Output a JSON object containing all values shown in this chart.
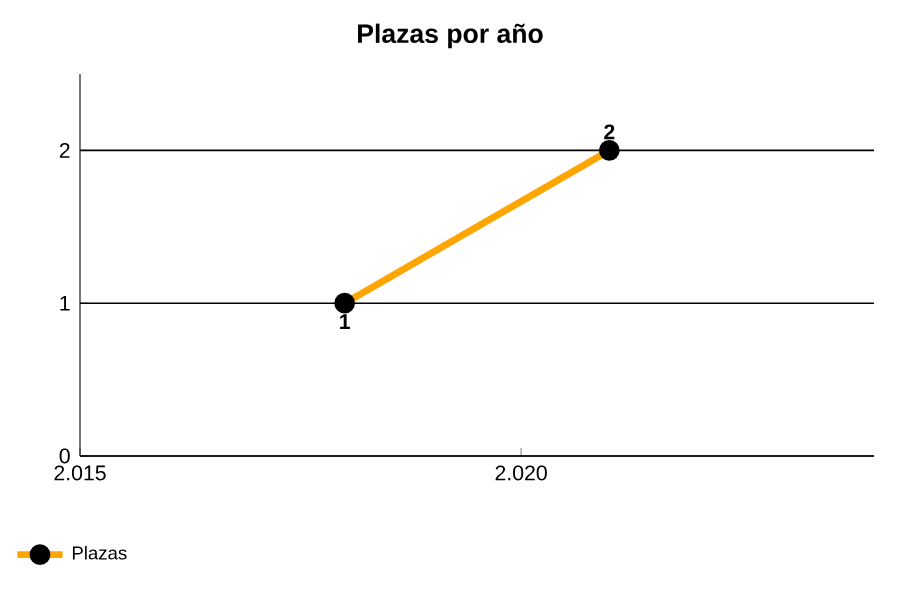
{
  "chart_data": {
    "type": "line",
    "title": "Plazas por año",
    "x": [
      2018,
      2021
    ],
    "series": [
      {
        "name": "Plazas",
        "color": "#ffa500",
        "values": [
          1,
          2
        ]
      }
    ],
    "xlim": [
      2015,
      2024
    ],
    "xticks": [
      {
        "value": 2015,
        "label": "2.015"
      },
      {
        "value": 2020,
        "label": "2.020"
      }
    ],
    "ylim": [
      0,
      2.5
    ],
    "yticks": [
      0,
      1,
      2
    ],
    "grid": "y",
    "legend": "bottom left",
    "marker": "circle",
    "data_labels": true
  }
}
